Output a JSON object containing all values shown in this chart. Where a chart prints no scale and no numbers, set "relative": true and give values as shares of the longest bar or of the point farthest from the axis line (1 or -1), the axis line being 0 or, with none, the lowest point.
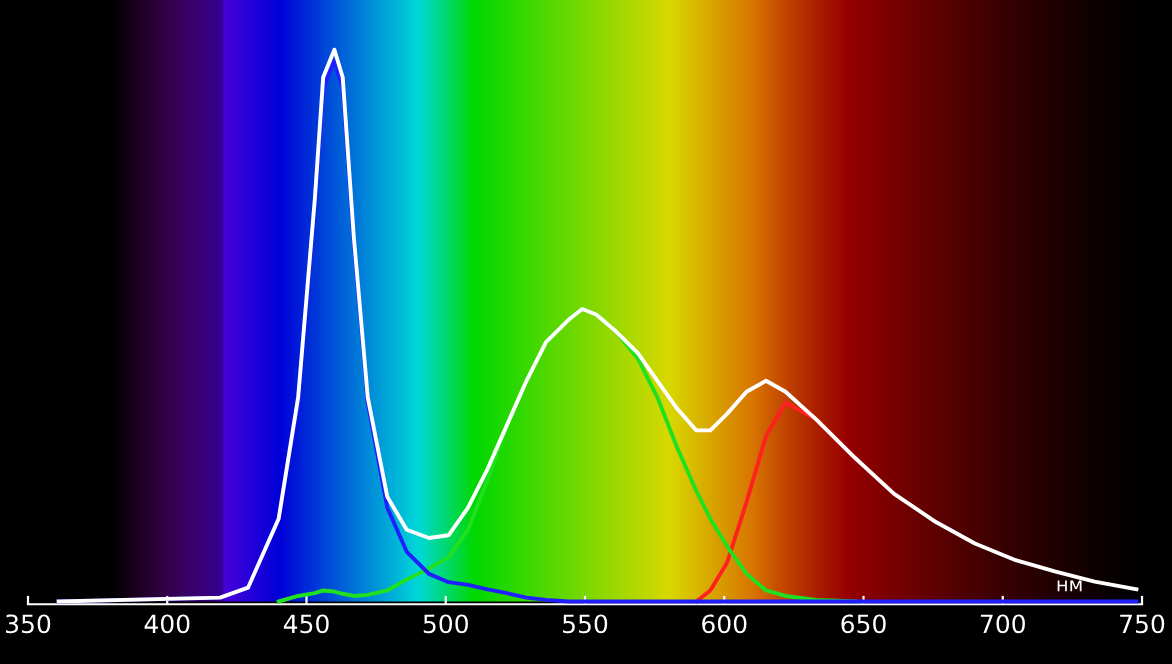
{
  "chart_data": {
    "type": "line",
    "relative": true,
    "xlabel": "нм",
    "x": [
      361,
      419,
      429,
      440,
      447,
      453,
      456,
      460,
      463,
      467,
      472,
      479,
      486,
      494,
      501,
      508,
      515,
      522,
      529,
      536,
      544,
      549,
      554,
      561,
      569,
      576,
      583,
      590,
      595,
      601,
      608,
      615,
      622,
      633,
      647,
      661,
      676,
      690,
      704,
      719,
      733,
      748
    ],
    "xlim": [
      350,
      750
    ],
    "xticks": [
      350,
      400,
      450,
      500,
      550,
      600,
      650,
      700,
      750
    ],
    "grid": false,
    "marker": "none",
    "line_style": "solid",
    "series": [
      {
        "color": "#ff2020",
        "values": [
          null,
          null,
          null,
          null,
          null,
          null,
          null,
          null,
          null,
          null,
          null,
          null,
          null,
          null,
          null,
          null,
          null,
          null,
          null,
          null,
          null,
          null,
          null,
          null,
          null,
          null,
          null,
          0,
          0.02,
          0.07,
          0.18,
          0.3,
          0.36,
          0.33,
          0.26,
          null,
          null,
          null,
          null,
          null,
          null,
          null
        ]
      },
      {
        "color": "#20e020",
        "values": [
          null,
          null,
          null,
          0,
          0.01,
          0.015,
          0.02,
          0.018,
          0.014,
          0.01,
          0.012,
          0.02,
          0.04,
          0.06,
          0.08,
          0.13,
          0.22,
          0.32,
          0.4,
          0.47,
          0.51,
          0.53,
          0.52,
          0.49,
          0.44,
          0.37,
          0.28,
          0.2,
          0.15,
          0.1,
          0.05,
          0.02,
          0.01,
          0.003,
          0,
          null,
          null,
          null,
          null,
          null,
          null,
          null
        ]
      },
      {
        "color": "#2020ff",
        "values": [
          0,
          0.007,
          0.025,
          0.15,
          0.36,
          0.72,
          0.93,
          0.98,
          0.93,
          0.65,
          0.36,
          0.17,
          0.09,
          0.05,
          0.035,
          0.03,
          0.022,
          0.015,
          0.007,
          0.003,
          0,
          0,
          0,
          0,
          0,
          0,
          0,
          0,
          0,
          0,
          0,
          0,
          0,
          0,
          0,
          0,
          0,
          0,
          0,
          0,
          0,
          0
        ]
      },
      {
        "color": "#ffffff",
        "values": [
          0,
          0.007,
          0.025,
          0.15,
          0.37,
          0.73,
          0.95,
          1,
          0.95,
          0.66,
          0.37,
          0.19,
          0.13,
          0.115,
          0.12,
          0.17,
          0.24,
          0.32,
          0.4,
          0.47,
          0.51,
          0.53,
          0.52,
          0.49,
          0.45,
          0.4,
          0.35,
          0.31,
          0.31,
          0.34,
          0.38,
          0.4,
          0.38,
          0.33,
          0.26,
          0.195,
          0.144,
          0.105,
          0.076,
          0.054,
          0.036,
          0.022
        ]
      }
    ]
  }
}
